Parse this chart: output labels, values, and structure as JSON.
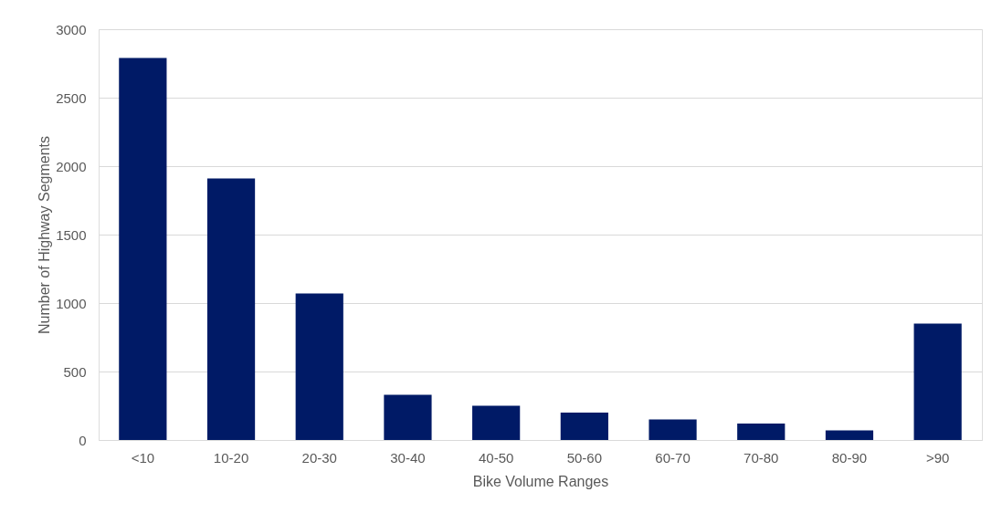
{
  "chart_data": {
    "type": "bar",
    "xlabel": "Bike Volume Ranges",
    "ylabel": "Number of Highway Segments",
    "categories": [
      "<10",
      "10-20",
      "20-30",
      "30-40",
      "40-50",
      "50-60",
      "60-70",
      "70-80",
      "80-90",
      ">90"
    ],
    "values": [
      2790,
      1910,
      1070,
      330,
      250,
      200,
      150,
      120,
      70,
      850
    ],
    "color": "#001a66",
    "ylim": [
      0,
      3000
    ],
    "yticks": [
      0,
      500,
      1000,
      1500,
      2000,
      2500,
      3000
    ],
    "grid": "y"
  }
}
